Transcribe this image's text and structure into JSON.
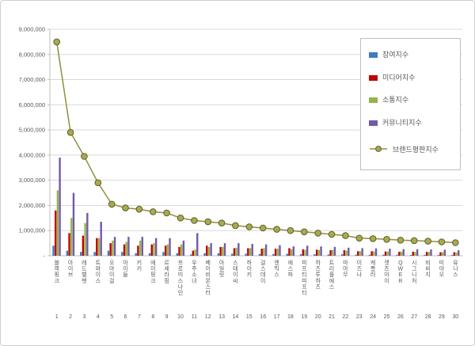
{
  "chart": {
    "title": "",
    "legend_items": [
      {
        "label": "참여지수",
        "type": "bar",
        "color": "#3E7BBF"
      },
      {
        "label": "미디어지수",
        "type": "bar",
        "color": "#C00000"
      },
      {
        "label": "소통지수",
        "type": "bar",
        "color": "#94B54A"
      },
      {
        "label": "커뮤니티지수",
        "type": "bar",
        "color": "#7459A8"
      },
      {
        "label": "브랜드평판지수",
        "type": "line",
        "color": "#8F8F3E"
      }
    ]
  },
  "chart_data": {
    "type": "bar",
    "subtype": "grouped bars with overlay line",
    "categories": [
      "블랙핑크",
      "아이브",
      "레드벨벳",
      "트와이스",
      "오마이걸",
      "아이들",
      "키키",
      "에이핑크",
      "르세라핌",
      "프로미스나인",
      "우주소녀",
      "베이비몬스터",
      "아일릿",
      "스테이씨",
      "하이키",
      "걸스데이",
      "엔믹스",
      "에스파",
      "피프티피프티",
      "하츠투하츠",
      "트리플에스",
      "마마무",
      "이즈나",
      "케플러",
      "캣츠아이",
      "QWER",
      "시그니처",
      "비비지",
      "미야오",
      "유니스"
    ],
    "ranks": [
      1,
      2,
      3,
      4,
      5,
      6,
      7,
      8,
      9,
      10,
      11,
      12,
      13,
      14,
      15,
      16,
      17,
      18,
      19,
      20,
      21,
      22,
      23,
      24,
      25,
      26,
      27,
      28,
      29,
      30
    ],
    "series": [
      {
        "name": "참여지수",
        "type": "bar",
        "color": "#3E7BBF",
        "values": [
          400000,
          200000,
          150000,
          150000,
          200000,
          150000,
          100000,
          100000,
          150000,
          100000,
          50000,
          100000,
          100000,
          80000,
          80000,
          70000,
          70000,
          80000,
          60000,
          60000,
          50000,
          60000,
          40000,
          40000,
          40000,
          40000,
          30000,
          30000,
          30000,
          30000
        ]
      },
      {
        "name": "미디어지수",
        "type": "bar",
        "color": "#C00000",
        "values": [
          1800000,
          900000,
          800000,
          700000,
          500000,
          450000,
          400000,
          450000,
          400000,
          350000,
          200000,
          400000,
          350000,
          300000,
          300000,
          280000,
          280000,
          300000,
          250000,
          240000,
          220000,
          220000,
          180000,
          180000,
          170000,
          160000,
          160000,
          150000,
          140000,
          140000
        ]
      },
      {
        "name": "소통지수",
        "type": "bar",
        "color": "#94B54A",
        "values": [
          2600000,
          1500000,
          1300000,
          700000,
          600000,
          550000,
          600000,
          500000,
          450000,
          450000,
          250000,
          350000,
          350000,
          320000,
          300000,
          300000,
          280000,
          250000,
          240000,
          230000,
          230000,
          200000,
          180000,
          170000,
          160000,
          160000,
          150000,
          150000,
          140000,
          130000
        ]
      },
      {
        "name": "커뮤니티지수",
        "type": "bar",
        "color": "#7459A8",
        "values": [
          3900000,
          2500000,
          1700000,
          1350000,
          750000,
          750000,
          750000,
          700000,
          700000,
          600000,
          900000,
          500000,
          500000,
          500000,
          470000,
          450000,
          420000,
          370000,
          400000,
          370000,
          350000,
          320000,
          300000,
          290000,
          280000,
          260000,
          260000,
          250000,
          240000,
          220000
        ]
      },
      {
        "name": "브랜드평판지수",
        "type": "line",
        "color": "#8F8F3E",
        "marker_fill": "#A9A953",
        "marker_stroke": "#5E5E26",
        "values": [
          8500000,
          4900000,
          3950000,
          2900000,
          2050000,
          1900000,
          1850000,
          1750000,
          1700000,
          1500000,
          1400000,
          1350000,
          1300000,
          1200000,
          1150000,
          1100000,
          1050000,
          1000000,
          950000,
          900000,
          850000,
          800000,
          700000,
          680000,
          650000,
          620000,
          600000,
          580000,
          550000,
          520000
        ]
      }
    ],
    "ylim": [
      0,
      9000000
    ],
    "ytick_step": 1000000,
    "ytick_labels": [
      "-",
      "1,000,000",
      "2,000,000",
      "3,000,000",
      "4,000,000",
      "5,000,000",
      "6,000,000",
      "7,000,000",
      "8,000,000",
      "9,000,000"
    ],
    "grid": true,
    "legend_position": "top-right"
  }
}
